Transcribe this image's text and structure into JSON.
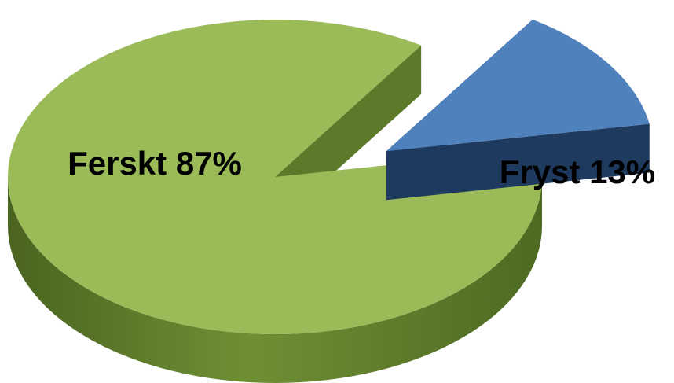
{
  "chart_data": {
    "type": "pie",
    "style": "3d-exploded",
    "slices": [
      {
        "label": "Ferskt 87%",
        "category": "Ferskt",
        "value": 87,
        "color": "#9bbb59",
        "side_color": "#5c7a29"
      },
      {
        "label": "Fryst 13%",
        "category": "Fryst",
        "value": 13,
        "color": "#4f81bd",
        "side_color": "#1f3a5f"
      }
    ]
  }
}
